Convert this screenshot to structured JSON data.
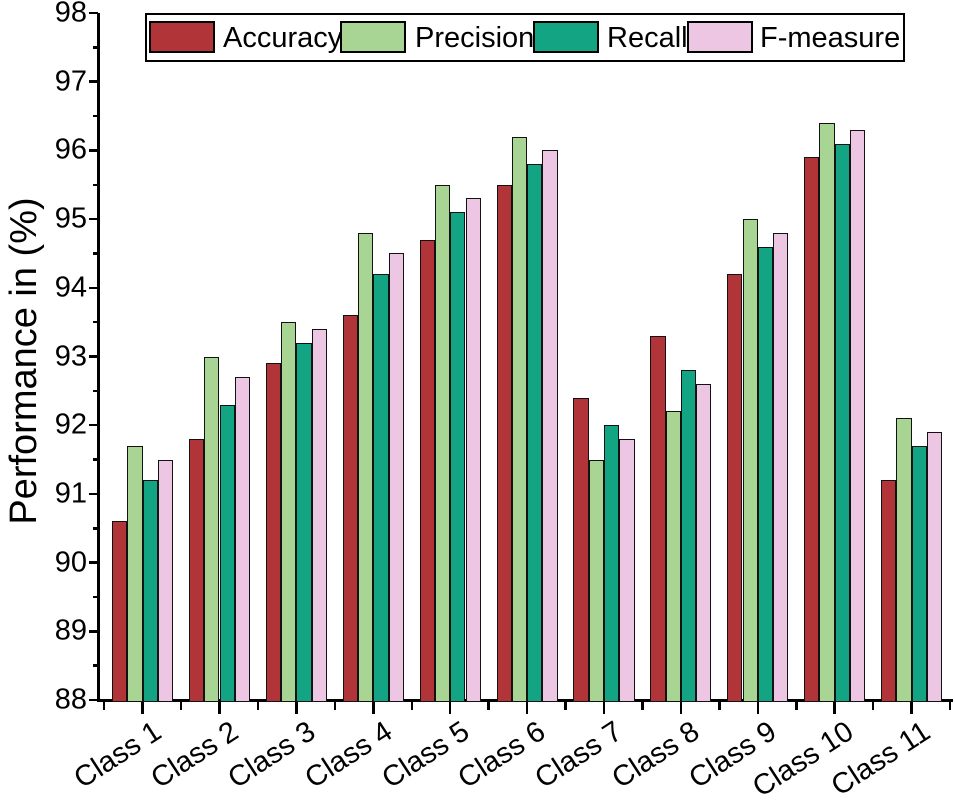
{
  "chart_data": {
    "type": "bar",
    "title": "",
    "xlabel": "",
    "ylabel": "Performance in (%)",
    "ylim": [
      88,
      98
    ],
    "y_major_tick_step": 1,
    "y_minor_tick_step": 0.5,
    "grid": false,
    "legend_position": "top-center",
    "categories": [
      "Class 1",
      "Class 2",
      "Class 3",
      "Class 4",
      "Class 5",
      "Class 6",
      "Class 7",
      "Class 8",
      "Class 9",
      "Class 10",
      "Class 11"
    ],
    "series": [
      {
        "name": "Accuracy",
        "color": "#b13439",
        "values": [
          90.6,
          91.8,
          92.9,
          93.6,
          94.7,
          95.5,
          92.4,
          93.3,
          94.2,
          95.9,
          91.2
        ]
      },
      {
        "name": "Precision",
        "color": "#a8d494",
        "values": [
          91.7,
          93.0,
          93.5,
          94.8,
          95.5,
          96.2,
          91.5,
          92.2,
          95.0,
          96.4,
          92.1
        ]
      },
      {
        "name": "Recall",
        "color": "#13a483",
        "values": [
          91.2,
          92.3,
          93.2,
          94.2,
          95.1,
          95.8,
          92.0,
          92.8,
          94.6,
          96.1,
          91.7
        ]
      },
      {
        "name": "F-measure",
        "color": "#ecc6e2",
        "values": [
          91.5,
          92.7,
          93.4,
          94.5,
          95.3,
          96.0,
          91.8,
          92.6,
          94.8,
          96.3,
          91.9
        ]
      }
    ]
  }
}
